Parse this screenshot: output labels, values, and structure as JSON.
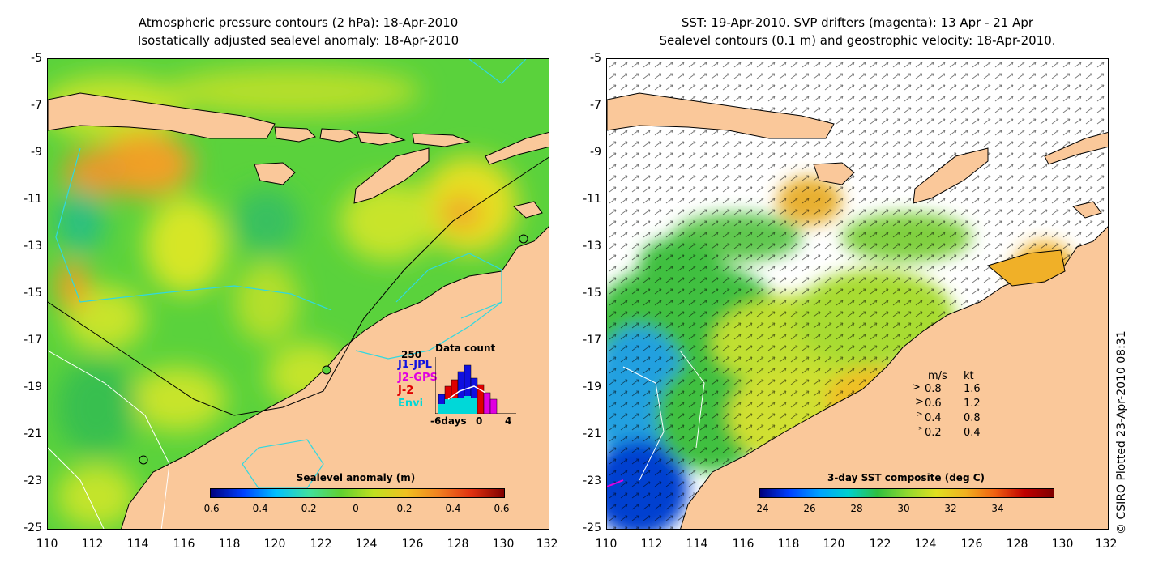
{
  "left_panel": {
    "title_line1": "Atmospheric pressure contours (2 hPa): 18-Apr-2010",
    "title_line2": "Isostatically adjusted sealevel anomaly: 18-Apr-2010",
    "y_ticks": [
      "-5",
      "-7",
      "-9",
      "-11",
      "-13",
      "-15",
      "-17",
      "-19",
      "-21",
      "-23",
      "-25"
    ],
    "x_ticks": [
      "110",
      "112",
      "114",
      "116",
      "118",
      "120",
      "122",
      "124",
      "126",
      "128",
      "130",
      "132"
    ],
    "colorbar": {
      "title": "Sealevel anomaly (m)",
      "ticks": [
        "-0.6",
        "-0.4",
        "-0.2",
        "0",
        "0.2",
        "0.4",
        "0.6"
      ]
    },
    "data_count": {
      "title": "Data count",
      "y_max": "250",
      "sources": [
        {
          "name": "J1-JPL",
          "color": "#1010e0"
        },
        {
          "name": "J2-GPS",
          "color": "#e000e0"
        },
        {
          "name": "J-2",
          "color": "#e00000"
        },
        {
          "name": "Envi",
          "color": "#00d8d8"
        }
      ],
      "x_label_left": "-6days",
      "x_label_mid": "0",
      "x_label_right": "4"
    }
  },
  "right_panel": {
    "title_line1": "SST: 19-Apr-2010. SVP drifters (magenta): 13 Apr - 21 Apr",
    "title_line2": "Sealevel contours (0.1 m) and geostrophic velocity: 18-Apr-2010.",
    "y_ticks": [
      "-5",
      "-7",
      "-9",
      "-11",
      "-13",
      "-15",
      "-17",
      "-19",
      "-21",
      "-23",
      "-25"
    ],
    "x_ticks": [
      "110",
      "112",
      "114",
      "116",
      "118",
      "120",
      "122",
      "124",
      "126",
      "128",
      "130",
      "132"
    ],
    "colorbar": {
      "title": "3-day SST composite (deg C)",
      "ticks": [
        "24",
        "26",
        "28",
        "30",
        "32",
        "34"
      ]
    },
    "velocity_legend": {
      "header_ms": "m/s",
      "header_kt": "kt",
      "rows": [
        {
          "ms": "0.8",
          "kt": "1.6"
        },
        {
          "ms": "0.6",
          "kt": "1.2"
        },
        {
          "ms": "0.4",
          "kt": "0.8"
        },
        {
          "ms": "0.2",
          "kt": "0.4"
        }
      ]
    }
  },
  "copyright": "© CSIRO Plotted 23-Apr-2010 08:31",
  "colors": {
    "land": "#fac89a",
    "ocean_green": "#5ad23c",
    "ocean_yellow": "#d2e628",
    "ocean_orange": "#f0a028"
  }
}
